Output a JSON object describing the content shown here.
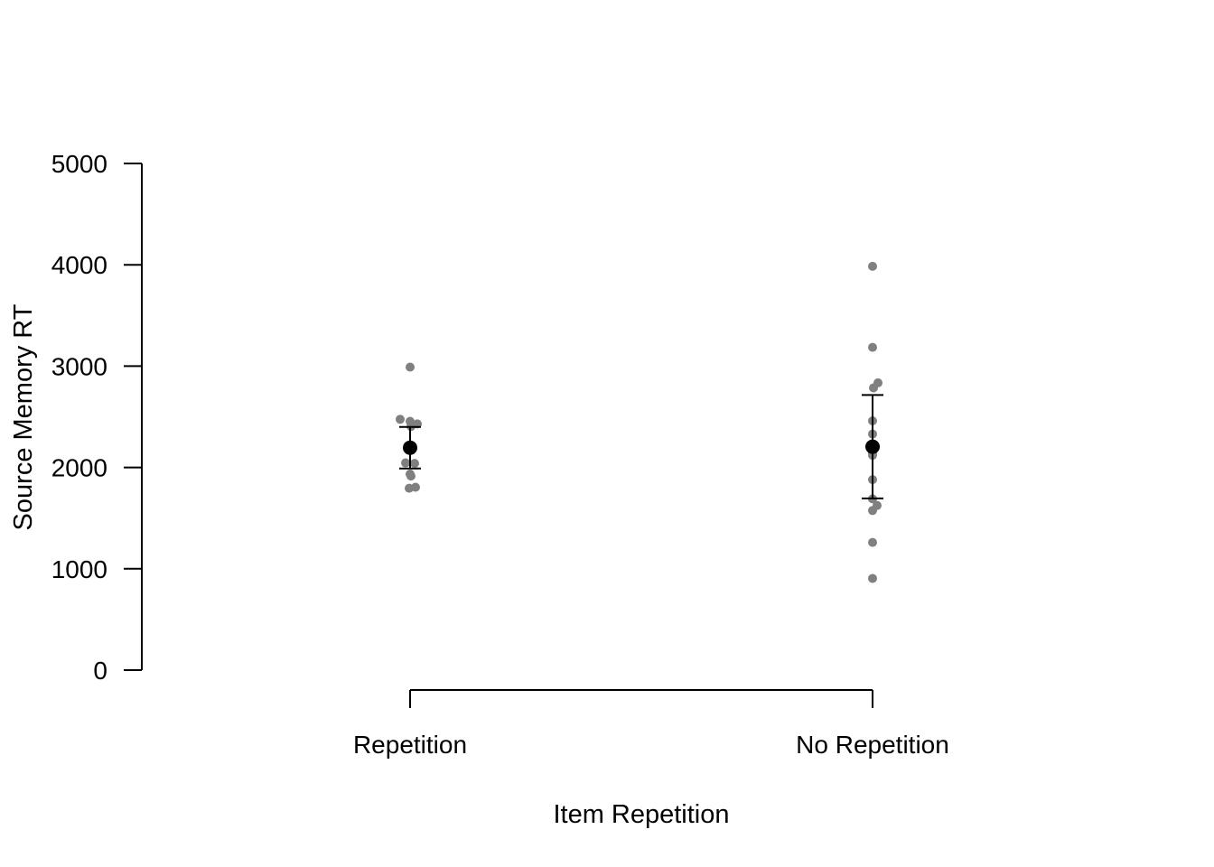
{
  "chart_data": {
    "type": "scatter",
    "title": "",
    "xlabel": "Item Repetition",
    "ylabel": "Source Memory RT",
    "categories": [
      "Repetition",
      "No Repetition"
    ],
    "ylim": [
      0,
      5000
    ],
    "yticks": [
      0,
      1000,
      2000,
      3000,
      4000,
      5000
    ],
    "grid": false,
    "legend": "none",
    "colors": {
      "points": "#808080",
      "mean": "#000000",
      "axis": "#000000"
    },
    "summary": [
      {
        "category": "Repetition",
        "mean": 2195,
        "lower": 1990,
        "upper": 2400
      },
      {
        "category": "No Repetition",
        "mean": 2205,
        "lower": 1695,
        "upper": 2715
      }
    ],
    "points": [
      {
        "category": "Repetition",
        "values": [
          2990,
          2475,
          2455,
          2430,
          2405,
          2045,
          2040,
          1935,
          1915,
          1805,
          1795
        ]
      },
      {
        "category": "No Repetition",
        "values": [
          3985,
          3185,
          2835,
          2785,
          2460,
          2330,
          2140,
          2120,
          1880,
          1690,
          1625,
          1575,
          1260,
          905
        ]
      }
    ]
  }
}
